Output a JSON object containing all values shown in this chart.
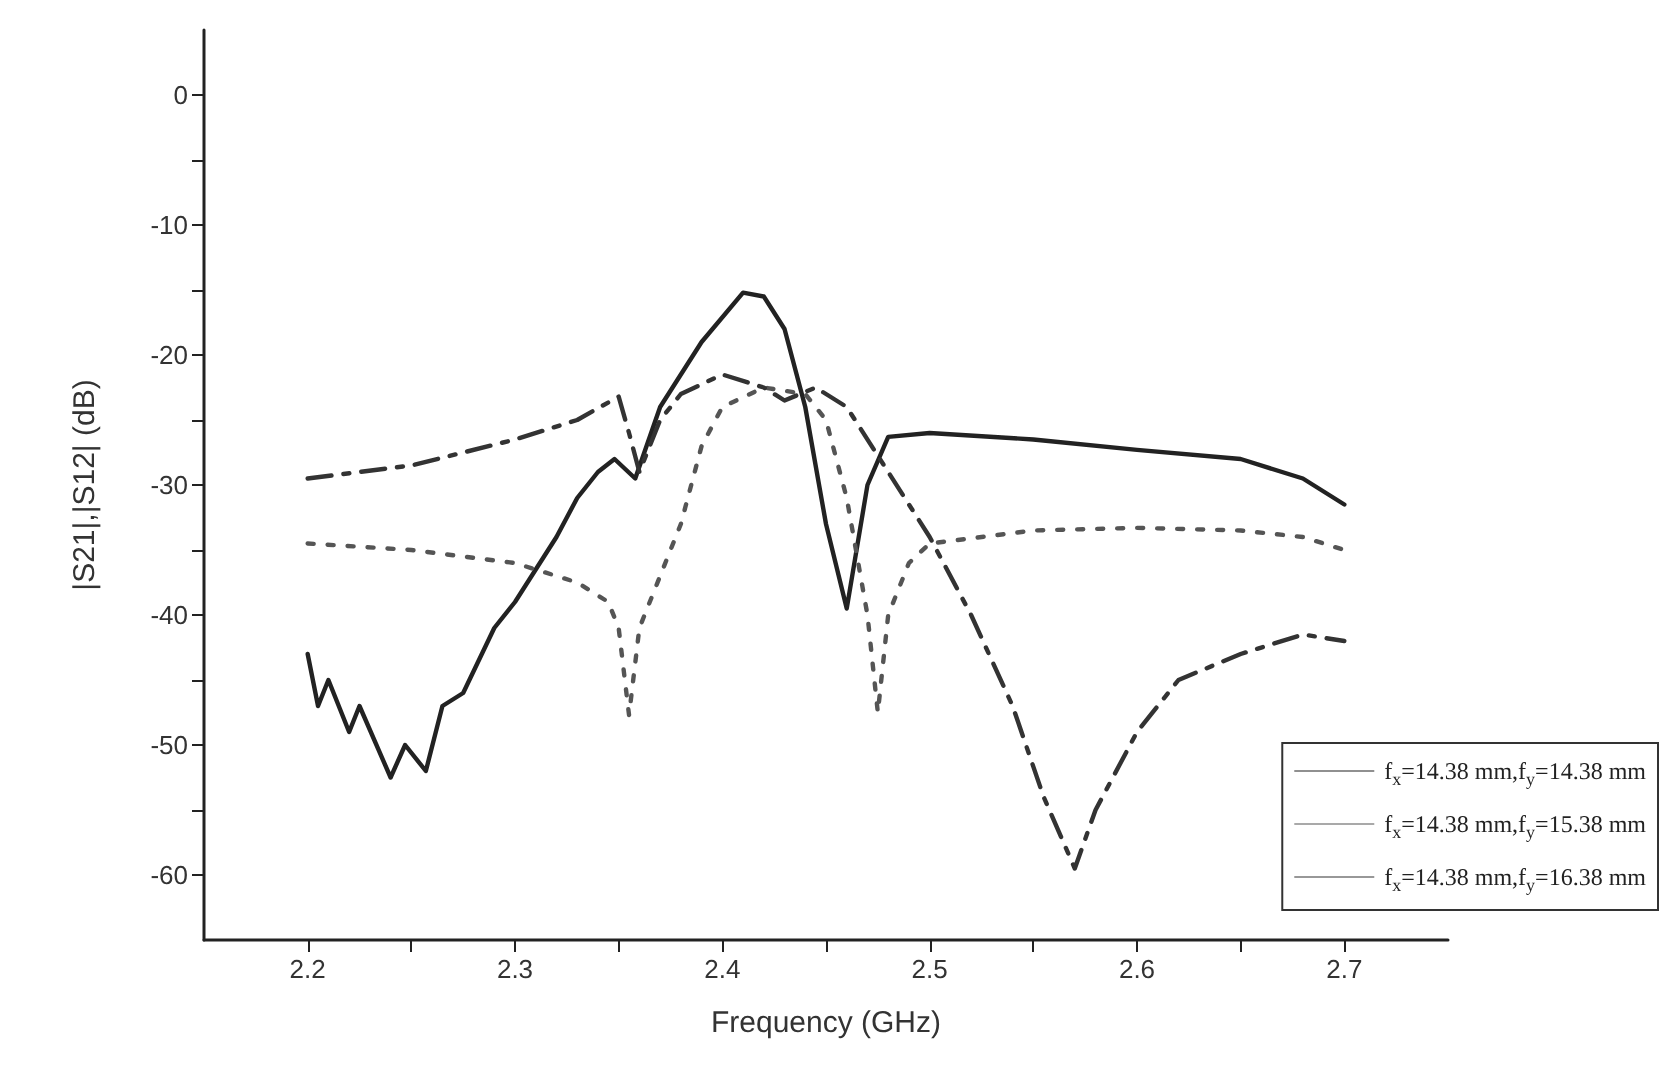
{
  "chart_data": {
    "type": "line",
    "xlabel": "Frequency (GHz)",
    "ylabel": "|S21|,|S12| (dB)",
    "xlim": [
      2.15,
      2.75
    ],
    "xticks": [
      2.2,
      {
        "value": 2.25,
        "label": null
      },
      2.3,
      {
        "value": 2.35,
        "label": null
      },
      2.4,
      {
        "value": 2.45,
        "label": null
      },
      2.5,
      {
        "value": 2.55,
        "label": null
      },
      2.6,
      {
        "value": 2.65,
        "label": null
      },
      2.7
    ],
    "ylim": [
      -65,
      5
    ],
    "yticks": [
      -60,
      {
        "value": -55,
        "label": null
      },
      -50,
      {
        "value": -45,
        "label": null
      },
      -40,
      {
        "value": -35,
        "label": null
      },
      -30,
      {
        "value": -25,
        "label": null
      },
      -20,
      {
        "value": -15,
        "label": null
      },
      -10,
      {
        "value": -5,
        "label": null
      },
      0
    ],
    "grid": false,
    "legend": "bottom right",
    "marker": "none",
    "series": [
      {
        "name": "f$_{x}$=14.38 mm,f$_{y}$=14.38 mm",
        "color": "#222222",
        "line_style": "solid",
        "x": [
          2.2,
          2.205,
          2.21,
          2.22,
          2.225,
          2.24,
          2.247,
          2.257,
          2.265,
          2.275,
          2.29,
          2.3,
          2.32,
          2.33,
          2.34,
          2.348,
          2.358,
          2.37,
          2.39,
          2.41,
          2.42,
          2.43,
          2.44,
          2.45,
          2.46,
          2.47,
          2.48,
          2.5,
          2.55,
          2.6,
          2.65,
          2.68,
          2.7
        ],
        "values": [
          -43,
          -47,
          -45,
          -49,
          -47,
          -52.5,
          -50,
          -52,
          -47,
          -46,
          -41,
          -39,
          -34,
          -31,
          -29,
          -28,
          -29.5,
          -24,
          -19,
          -15.2,
          -15.5,
          -18,
          -24,
          -33,
          -39.5,
          -30,
          -26.3,
          -26,
          -26.5,
          -27.3,
          -28,
          -29.5,
          -31.5
        ]
      },
      {
        "name": "f$_{x}$=14.38 mm,f$_{y}$=15.38 mm",
        "color": "#555555",
        "line_style": "dotted",
        "x": [
          2.2,
          2.25,
          2.3,
          2.33,
          2.345,
          2.35,
          2.355,
          2.36,
          2.38,
          2.39,
          2.4,
          2.42,
          2.44,
          2.45,
          2.46,
          2.47,
          2.475,
          2.48,
          2.49,
          2.5,
          2.55,
          2.6,
          2.65,
          2.68,
          2.7
        ],
        "values": [
          -34.5,
          -35,
          -36,
          -37.5,
          -39,
          -41,
          -47.7,
          -41,
          -33,
          -27,
          -24,
          -22.5,
          -23,
          -25,
          -31,
          -40,
          -47.5,
          -40,
          -36,
          -34.5,
          -33.5,
          -33.3,
          -33.5,
          -34,
          -35
        ]
      },
      {
        "name": "f$_{x}$=14.38 mm,f$_{y}$=16.38 mm",
        "color": "#333333",
        "line_style": "dashdot",
        "x": [
          2.2,
          2.25,
          2.3,
          2.33,
          2.35,
          2.355,
          2.36,
          2.37,
          2.38,
          2.4,
          2.42,
          2.43,
          2.445,
          2.46,
          2.48,
          2.5,
          2.52,
          2.54,
          2.555,
          2.57,
          2.58,
          2.6,
          2.62,
          2.65,
          2.68,
          2.7
        ],
        "values": [
          -29.5,
          -28.5,
          -26.5,
          -25,
          -23.2,
          -26,
          -29,
          -25,
          -23,
          -21.5,
          -22.5,
          -23.5,
          -22.5,
          -24,
          -29,
          -34,
          -40,
          -47,
          -54,
          -59.5,
          -55,
          -49,
          -45,
          -43,
          -41.5,
          -42
        ]
      }
    ]
  }
}
